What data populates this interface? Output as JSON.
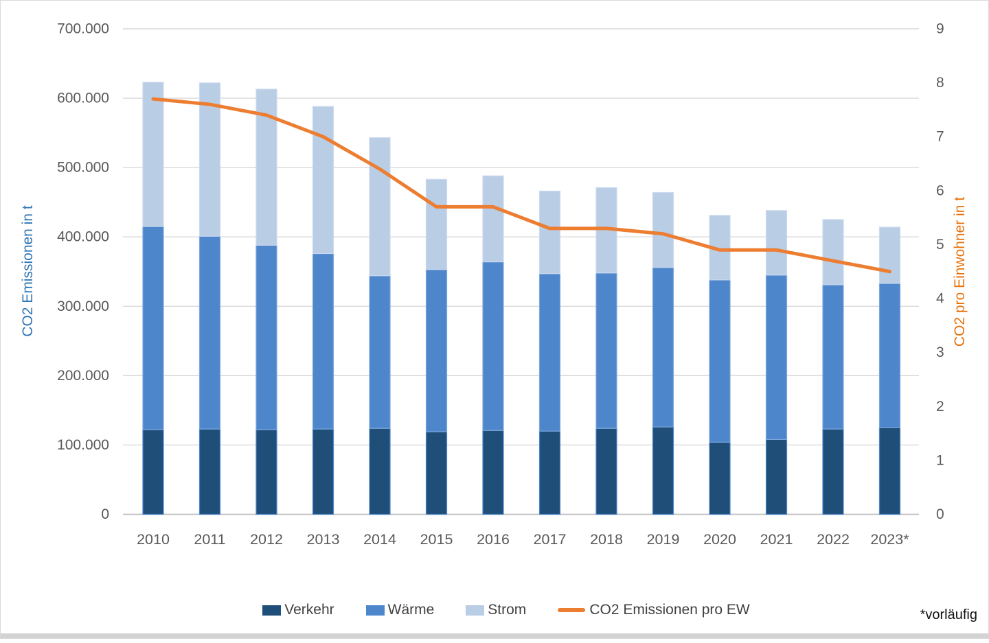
{
  "page": {
    "footnote": "*vorläufig"
  },
  "chart_data": {
    "type": "bar",
    "subtype": "stacked-bars-with-line-overlay",
    "categories": [
      "2010",
      "2011",
      "2012",
      "2013",
      "2014",
      "2015",
      "2016",
      "2017",
      "2018",
      "2019",
      "2020",
      "2021",
      "2022",
      "2023*"
    ],
    "series": [
      {
        "name": "Verkehr",
        "type": "bar",
        "axis": "left",
        "color": "#1F4E79",
        "border": "#4E86CC",
        "values": [
          122000,
          123000,
          122000,
          123000,
          124000,
          119000,
          121000,
          120000,
          124000,
          126000,
          104000,
          108000,
          123000,
          125000
        ]
      },
      {
        "name": "Wärme",
        "type": "bar",
        "axis": "left",
        "color": "#4E86CC",
        "border": "#7FA8DC",
        "values": [
          293000,
          278000,
          266000,
          253000,
          220000,
          234000,
          243000,
          227000,
          224000,
          230000,
          234000,
          237000,
          208000,
          208000
        ]
      },
      {
        "name": "Strom",
        "type": "bar",
        "axis": "left",
        "color": "#B9CDE5",
        "border": "#CBDAEE",
        "values": [
          208000,
          221000,
          225000,
          212000,
          199000,
          130000,
          124000,
          119000,
          123000,
          108000,
          93000,
          93000,
          94000,
          81000
        ]
      },
      {
        "name": "CO2 Emissionen pro EW",
        "type": "line",
        "axis": "right",
        "color": "#ED7D31",
        "values": [
          7.7,
          7.6,
          7.4,
          7.0,
          6.4,
          5.7,
          5.7,
          5.3,
          5.3,
          5.2,
          4.9,
          4.9,
          4.7,
          4.5
        ]
      }
    ],
    "stacked_totals": [
      623000,
      622000,
      613000,
      588000,
      543000,
      483000,
      488000,
      466000,
      471000,
      464000,
      431000,
      438000,
      425000,
      414000
    ],
    "left_axis": {
      "label": "CO2 Emissionen in t",
      "label_color": "#2E75B6",
      "min": 0,
      "max": 700000,
      "step": 100000,
      "tick_labels": [
        "0",
        "100.000",
        "200.000",
        "300.000",
        "400.000",
        "500.000",
        "600.000",
        "700.000"
      ]
    },
    "right_axis": {
      "label": "CO2  pro Einwohner in t",
      "label_color": "#E8710A",
      "min": 0,
      "max": 9,
      "step": 1,
      "tick_labels": [
        "0",
        "1",
        "2",
        "3",
        "4",
        "5",
        "6",
        "7",
        "8",
        "9"
      ]
    },
    "grid": true,
    "legend_position": "bottom",
    "styles": {
      "gridline_color": "#D9D9D9",
      "zeroline_color": "#BFBFBF",
      "tick_text_color": "#595959",
      "legend_text_color": "#404040"
    }
  }
}
